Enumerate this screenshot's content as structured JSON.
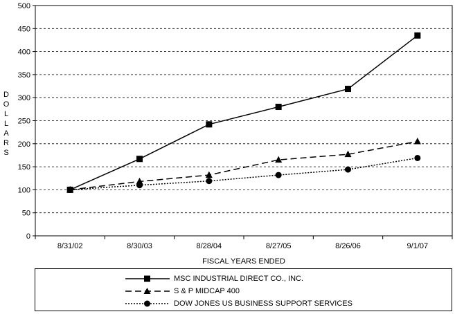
{
  "chart_data": {
    "type": "line",
    "title": "",
    "xlabel": "FISCAL YEARS ENDED",
    "ylabel": "DOLLARS",
    "categories": [
      "8/31/02",
      "8/30/03",
      "8/28/04",
      "8/27/05",
      "8/26/06",
      "9/1/07"
    ],
    "ylim": [
      0,
      500
    ],
    "yticks": [
      0,
      50,
      100,
      150,
      200,
      250,
      300,
      350,
      400,
      450,
      500
    ],
    "grid": true,
    "legend_position": "bottom",
    "series": [
      {
        "name": "MSC INDUSTRIAL DIRECT CO., INC.",
        "values": [
          100,
          167,
          242,
          280,
          319,
          435
        ],
        "marker": "square",
        "dash": "solid"
      },
      {
        "name": "S & P MIDCAP 400",
        "values": [
          100,
          118,
          132,
          165,
          177,
          205
        ],
        "marker": "triangle",
        "dash": "dashed"
      },
      {
        "name": "DOW JONES US BUSINESS SUPPORT SERVICES",
        "values": [
          100,
          110,
          119,
          132,
          144,
          169
        ],
        "marker": "circle",
        "dash": "dotted"
      }
    ]
  }
}
